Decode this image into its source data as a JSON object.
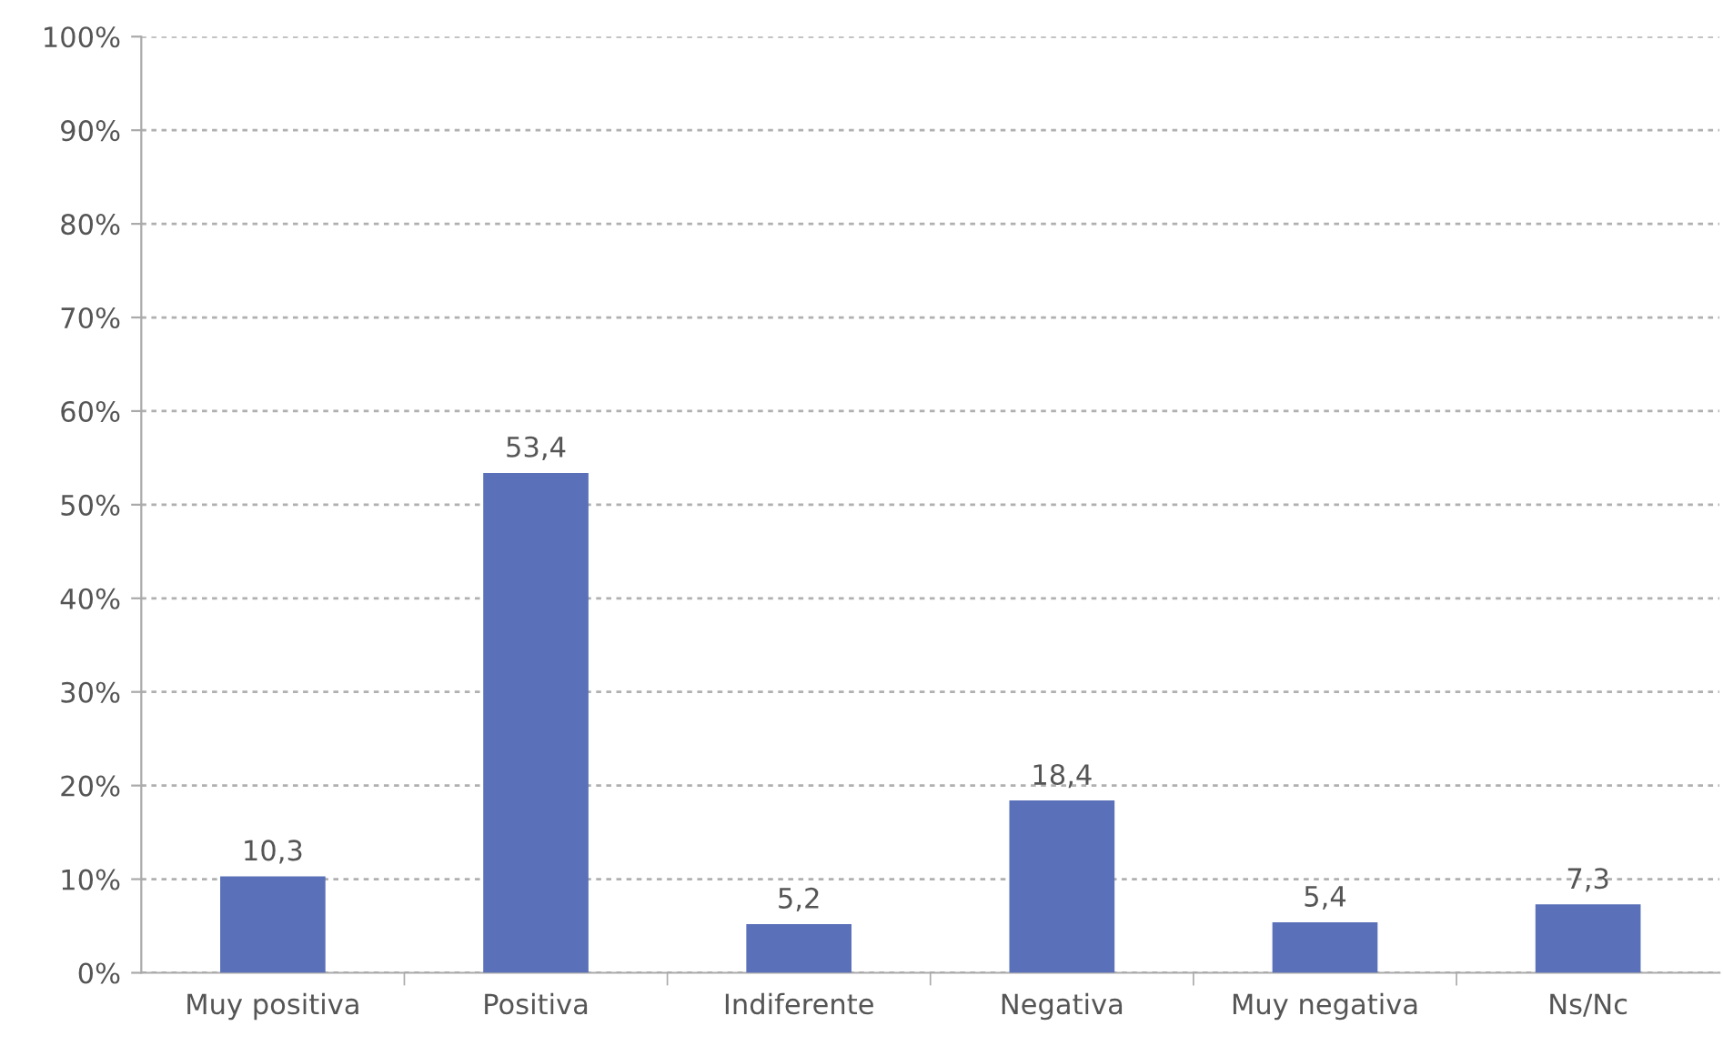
{
  "chart_data": {
    "type": "bar",
    "categories": [
      "Muy positiva",
      "Positiva",
      "Indiferente",
      "Negativa",
      "Muy negativa",
      "Ns/Nc"
    ],
    "values": [
      10.3,
      53.4,
      5.2,
      18.4,
      5.4,
      7.3
    ],
    "value_labels": [
      "10,3",
      "53,4",
      "5,2",
      "18,4",
      "5,4",
      "7,3"
    ],
    "color": "#5a70b8",
    "ylim": [
      0,
      100
    ],
    "yticks": [
      {
        "value": 0,
        "label": "0%"
      },
      {
        "value": 10,
        "label": "10%"
      },
      {
        "value": 20,
        "label": "20%"
      },
      {
        "value": 30,
        "label": "30%"
      },
      {
        "value": 40,
        "label": "40%"
      },
      {
        "value": 50,
        "label": "50%"
      },
      {
        "value": 60,
        "label": "60%"
      },
      {
        "value": 70,
        "label": "70%"
      },
      {
        "value": 80,
        "label": "80%"
      },
      {
        "value": 90,
        "label": "90%"
      },
      {
        "value": 100,
        "label": "100%"
      }
    ],
    "grid": "y",
    "legend": false
  }
}
